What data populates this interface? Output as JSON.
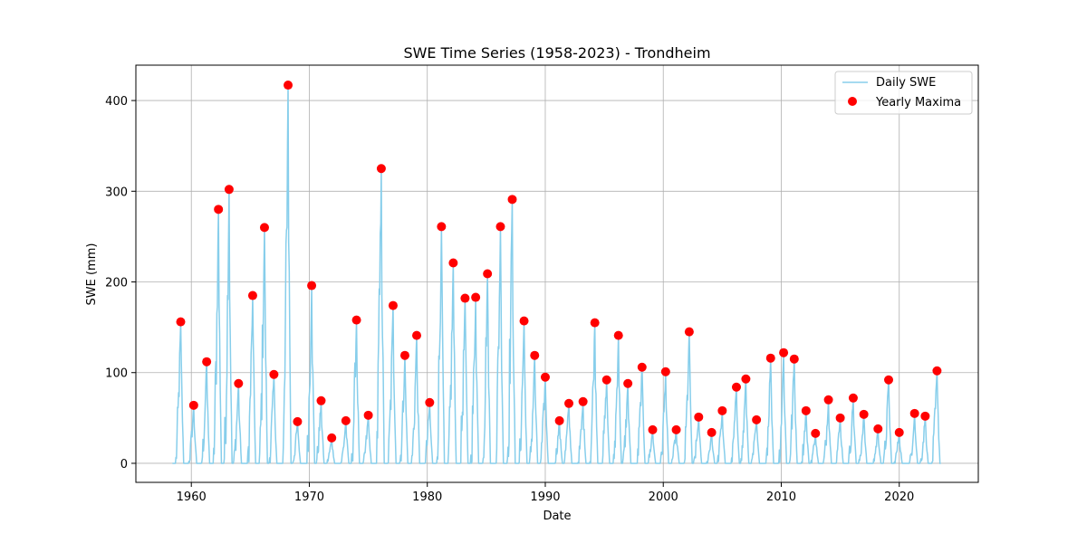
{
  "chart_data": {
    "type": "line",
    "title": "SWE Time Series (1958-2023) - Trondheim",
    "xlabel": "Date",
    "ylabel": "SWE (mm)",
    "xlim": [
      1955.3,
      2026.7
    ],
    "ylim": [
      -21,
      439
    ],
    "x_ticks": [
      1960,
      1970,
      1980,
      1990,
      2000,
      2010,
      2020
    ],
    "y_ticks": [
      0,
      100,
      200,
      300,
      400
    ],
    "grid": true,
    "legend": "top-right",
    "colors": {
      "daily": "#87ceeb",
      "maxima": "#ff0000"
    },
    "series": [
      {
        "name": "Daily SWE",
        "type": "line",
        "peaks": [
          [
            1959.1,
            156
          ],
          [
            1960.2,
            64
          ],
          [
            1961.3,
            112
          ],
          [
            1962.3,
            280
          ],
          [
            1963.2,
            302
          ],
          [
            1964.0,
            88
          ],
          [
            1965.2,
            185
          ],
          [
            1966.2,
            260
          ],
          [
            1967.0,
            98
          ],
          [
            1968.2,
            417
          ],
          [
            1969.0,
            46
          ],
          [
            1970.2,
            196
          ],
          [
            1971.0,
            69
          ],
          [
            1971.9,
            28
          ],
          [
            1973.1,
            47
          ],
          [
            1974.0,
            158
          ],
          [
            1975.0,
            53
          ],
          [
            1976.1,
            325
          ],
          [
            1977.1,
            174
          ],
          [
            1978.1,
            119
          ],
          [
            1979.1,
            141
          ],
          [
            1980.2,
            67
          ],
          [
            1981.2,
            261
          ],
          [
            1982.2,
            221
          ],
          [
            1983.2,
            182
          ],
          [
            1984.1,
            183
          ],
          [
            1985.1,
            209
          ],
          [
            1986.2,
            261
          ],
          [
            1987.2,
            291
          ],
          [
            1988.2,
            157
          ],
          [
            1989.1,
            119
          ],
          [
            1990.0,
            95
          ],
          [
            1991.2,
            47
          ],
          [
            1992.0,
            66
          ],
          [
            1993.2,
            68
          ],
          [
            1994.2,
            155
          ],
          [
            1995.2,
            92
          ],
          [
            1996.2,
            141
          ],
          [
            1997.0,
            88
          ],
          [
            1998.2,
            106
          ],
          [
            1999.1,
            37
          ],
          [
            2000.2,
            101
          ],
          [
            2001.1,
            37
          ],
          [
            2002.2,
            145
          ],
          [
            2003.0,
            51
          ],
          [
            2004.1,
            34
          ],
          [
            2005.0,
            58
          ],
          [
            2006.2,
            84
          ],
          [
            2007.0,
            93
          ],
          [
            2007.9,
            48
          ],
          [
            2009.1,
            116
          ],
          [
            2010.2,
            122
          ],
          [
            2011.1,
            115
          ],
          [
            2012.1,
            58
          ],
          [
            2012.9,
            33
          ],
          [
            2014.0,
            70
          ],
          [
            2015.0,
            50
          ],
          [
            2016.1,
            72
          ],
          [
            2017.0,
            54
          ],
          [
            2018.2,
            38
          ],
          [
            2019.1,
            92
          ],
          [
            2020.0,
            34
          ],
          [
            2021.3,
            55
          ],
          [
            2022.2,
            52
          ],
          [
            2023.2,
            102
          ]
        ]
      },
      {
        "name": "Yearly Maxima",
        "type": "scatter",
        "x": [
          1959.1,
          1960.2,
          1961.3,
          1962.3,
          1963.2,
          1964.0,
          1965.2,
          1966.2,
          1967.0,
          1968.2,
          1969.0,
          1970.2,
          1971.0,
          1971.9,
          1973.1,
          1974.0,
          1975.0,
          1976.1,
          1977.1,
          1978.1,
          1979.1,
          1980.2,
          1981.2,
          1982.2,
          1983.2,
          1984.1,
          1985.1,
          1986.2,
          1987.2,
          1988.2,
          1989.1,
          1990.0,
          1991.2,
          1992.0,
          1993.2,
          1994.2,
          1995.2,
          1996.2,
          1997.0,
          1998.2,
          1999.1,
          2000.2,
          2001.1,
          2002.2,
          2003.0,
          2004.1,
          2005.0,
          2006.2,
          2007.0,
          2007.9,
          2009.1,
          2010.2,
          2011.1,
          2012.1,
          2012.9,
          2014.0,
          2015.0,
          2016.1,
          2017.0,
          2018.2,
          2019.1,
          2020.0,
          2021.3,
          2022.2,
          2023.2
        ],
        "y": [
          156,
          64,
          112,
          280,
          302,
          88,
          185,
          260,
          98,
          417,
          46,
          196,
          69,
          28,
          47,
          158,
          53,
          325,
          174,
          119,
          141,
          67,
          261,
          221,
          182,
          183,
          209,
          261,
          291,
          157,
          119,
          95,
          47,
          66,
          68,
          155,
          92,
          141,
          88,
          106,
          37,
          101,
          37,
          145,
          51,
          34,
          58,
          84,
          93,
          48,
          116,
          122,
          115,
          58,
          33,
          70,
          50,
          72,
          54,
          38,
          92,
          34,
          55,
          52,
          102
        ]
      }
    ]
  }
}
